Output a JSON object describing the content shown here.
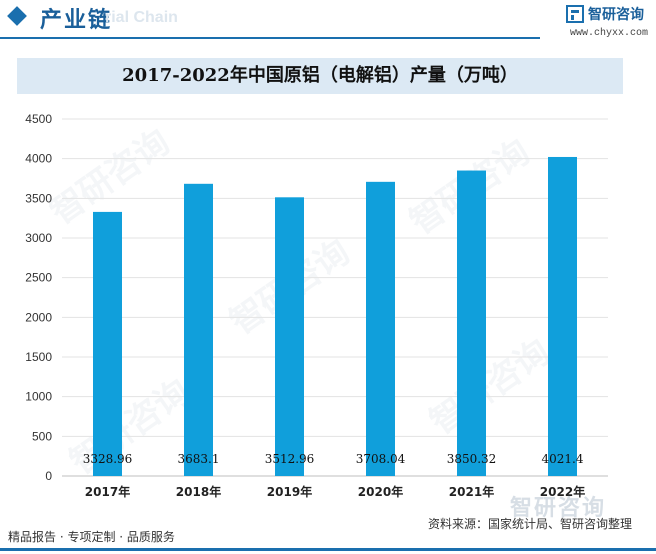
{
  "header": {
    "title": "产业链",
    "ghost_text": "rial Chain"
  },
  "brand": {
    "logo_icon": "chyxx-logo-icon",
    "name": "智研咨询",
    "url": "www.chyxx.com",
    "color": "#1a6fae"
  },
  "watermark": {
    "text": "智研咨询"
  },
  "chart_data": {
    "type": "bar",
    "title": "2017-2022年中国原铝（电解铝）产量（万吨）",
    "categories": [
      "2017年",
      "2018年",
      "2019年",
      "2020年",
      "2021年",
      "2022年"
    ],
    "values": [
      3328.96,
      3683.1,
      3512.96,
      3708.04,
      3850.32,
      4021.4
    ],
    "value_labels": [
      "3328.96",
      "3683.1",
      "3512.96",
      "3708.04",
      "3850.32",
      "4021.4"
    ],
    "y_ticks": [
      "0",
      "500",
      "1000",
      "1500",
      "2000",
      "2500",
      "3000",
      "3500",
      "4000",
      "4500"
    ],
    "ylim": [
      0,
      4500
    ],
    "grid": true,
    "bar_color": "#109fdb",
    "xlabel": "",
    "ylabel": ""
  },
  "footer": {
    "left": "精品报告 · 专项定制 · 品质服务",
    "source": "资料来源：国家统计局、智研咨询整理"
  }
}
